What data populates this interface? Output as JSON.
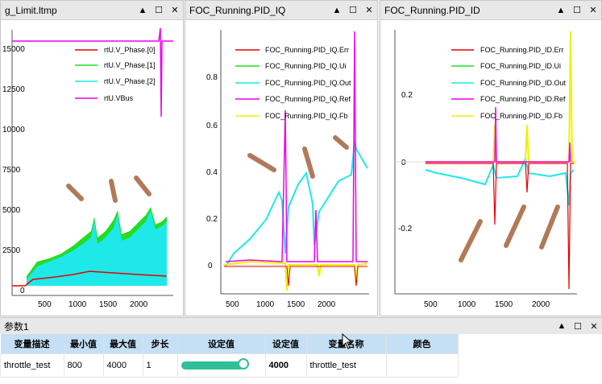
{
  "panels": [
    {
      "title": "g_Limit.ltmp",
      "legend": [
        "rtU.V_Phase.[0]",
        "rtU.V_Phase.[1]",
        "rtU.V_Phase.[2]",
        "rtU.VBus"
      ],
      "legend_colors": [
        "#e60000",
        "#22dd22",
        "#1ee8e8",
        "#ee00ee"
      ],
      "yticks": [
        "15000",
        "12500",
        "10000",
        "7500",
        "5000",
        "2500",
        "0"
      ],
      "xticks": [
        "500",
        "1000",
        "1500",
        "2000"
      ]
    },
    {
      "title": "FOC_Running.PID_IQ",
      "legend": [
        "FOC_Running.PID_IQ.Err",
        "FOC_Running.PID_IQ.Ui",
        "FOC_Running.PID_IQ.Out",
        "FOC_Running.PID_IQ.Ref",
        "FOC_Running.PID_IQ.Fb"
      ],
      "legend_colors": [
        "#e60000",
        "#22dd22",
        "#1ee8e8",
        "#ee00ee",
        "#f0f000"
      ],
      "yticks": [
        "0.8",
        "0.6",
        "0.4",
        "0.2",
        "0"
      ],
      "xticks": [
        "500",
        "1000",
        "1500",
        "2000"
      ]
    },
    {
      "title": "FOC_Running.PID_ID",
      "legend": [
        "FOC_Running.PID_ID.Err",
        "FOC_Running.PID_ID.Ui",
        "FOC_Running.PID_ID.Out",
        "FOC_Running.PID_ID.Ref",
        "FOC_Running.PID_ID.Fb"
      ],
      "legend_colors": [
        "#e60000",
        "#22dd22",
        "#1ee8e8",
        "#ee00ee",
        "#f0f000"
      ],
      "yticks": [
        "0.2",
        "0",
        "-0.2"
      ],
      "xticks": [
        "500",
        "1000",
        "1500",
        "2000"
      ]
    }
  ],
  "window_buttons": {
    "up": "▲",
    "max": "☐",
    "close": "✕"
  },
  "params": {
    "title": "参数1",
    "headers": [
      "变量描述",
      "最小值",
      "最大值",
      "步长",
      "设定值",
      "设定值",
      "变量名称",
      "颜色"
    ],
    "row": {
      "desc": "throttle_test",
      "min": "800",
      "max": "4000",
      "step": "1",
      "set": "4000",
      "name": "throttle_test"
    },
    "slider_level_percent": 100
  }
}
